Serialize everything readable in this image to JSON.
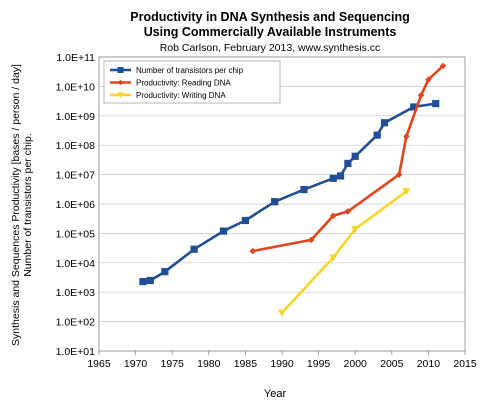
{
  "chart_data": {
    "type": "line",
    "title": "Productivity in DNA Synthesis and Sequencing",
    "subtitle_line2": "Using Commercially Available Instruments",
    "credit": "Rob Carlson, February 2013, www.synthesis.cc",
    "xlabel": "Year",
    "ylabel_line1": "Synthesis and Sequences Productivity [bases / person / day]",
    "ylabel_line2": "Number of transistors per chip.",
    "y_scale": "log",
    "grid": {
      "x": false,
      "y": true
    },
    "legend_position": "top-left",
    "xlim": [
      1965,
      2015
    ],
    "ylim": [
      10,
      100000000000
    ],
    "x_ticks": [
      "1965",
      "1970",
      "1975",
      "1980",
      "1985",
      "1990",
      "1995",
      "2000",
      "2005",
      "2010",
      "2015"
    ],
    "x_tick_values": [
      1965,
      1970,
      1975,
      1980,
      1985,
      1990,
      1995,
      2000,
      2005,
      2010,
      2015
    ],
    "y_ticks": [
      "1.0E+01",
      "1.0E+02",
      "1.0E+03",
      "1.0E+04",
      "1.0E+05",
      "1.0E+06",
      "1.0E+07",
      "1.0E+08",
      "1.0E+09",
      "1.0E+10",
      "1.0E+11"
    ],
    "y_tick_values": [
      10,
      100,
      1000,
      10000,
      100000,
      1000000,
      10000000,
      100000000,
      1000000000,
      10000000000,
      100000000000
    ],
    "series": [
      {
        "name": "Number of transistors per chip",
        "color": "#1f4e96",
        "marker": "square",
        "points": [
          [
            1971,
            2300
          ],
          [
            1972,
            2500
          ],
          [
            1974,
            5000
          ],
          [
            1978,
            29000
          ],
          [
            1982,
            120000
          ],
          [
            1985,
            275000
          ],
          [
            1989,
            1200000
          ],
          [
            1993,
            3100000
          ],
          [
            1997,
            7500000
          ],
          [
            1998,
            9000000
          ],
          [
            1999,
            24000000
          ],
          [
            2000,
            42000000
          ],
          [
            2003,
            220000000
          ],
          [
            2004,
            580000000
          ],
          [
            2008,
            2000000000
          ],
          [
            2011,
            2600000000
          ]
        ]
      },
      {
        "name": "Productivity: Reading DNA",
        "color": "#e2451f",
        "marker": "diamond",
        "points": [
          [
            1986,
            25000
          ],
          [
            1994,
            60000
          ],
          [
            1997,
            400000
          ],
          [
            1999,
            560000
          ],
          [
            2006,
            10000000
          ],
          [
            2007,
            200000000
          ],
          [
            2009,
            5000000000
          ],
          [
            2010,
            17000000000
          ],
          [
            2012,
            50000000000
          ]
        ]
      },
      {
        "name": "Productivity: Writing DNA",
        "color": "#f7d62a",
        "marker": "triangle",
        "points": [
          [
            1990,
            200
          ],
          [
            1997,
            15000
          ],
          [
            2000,
            140000
          ],
          [
            2007,
            2700000
          ]
        ]
      }
    ]
  }
}
